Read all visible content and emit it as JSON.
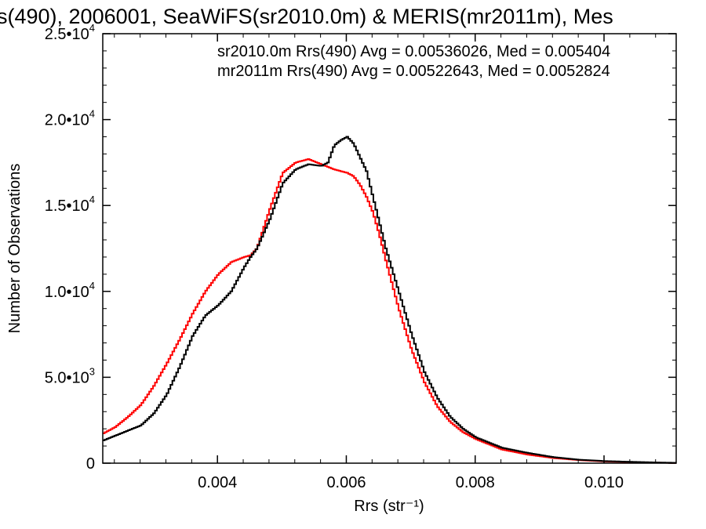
{
  "chart_data": {
    "type": "line",
    "title": "s(490), 2006001, SeaWiFS(sr2010.0m) & MERIS(mr2011m), Mes",
    "xlabel": "Rrs (str⁻¹)",
    "ylabel": "Number of Observations",
    "xlim": [
      0.00222,
      0.01112
    ],
    "ylim": [
      0,
      25000
    ],
    "x_ticks": [
      {
        "value": 0.004,
        "label": "0.004"
      },
      {
        "value": 0.006,
        "label": "0.006"
      },
      {
        "value": 0.008,
        "label": "0.008"
      },
      {
        "value": 0.01,
        "label": "0.010"
      }
    ],
    "y_ticks": [
      {
        "value": 0,
        "mant": "0",
        "exp": ""
      },
      {
        "value": 5000,
        "mant": "5.0•10",
        "exp": "3"
      },
      {
        "value": 10000,
        "mant": "1.0•10",
        "exp": "4"
      },
      {
        "value": 15000,
        "mant": "1.5•10",
        "exp": "4"
      },
      {
        "value": 20000,
        "mant": "2.0•10",
        "exp": "4"
      },
      {
        "value": 25000,
        "mant": "2.5•10",
        "exp": "4"
      }
    ],
    "grid": false,
    "legend_position": "top-right",
    "annotations": [
      {
        "text": "sr2010.0m Rrs(490) Avg = 0.00536026, Med = 0.005404",
        "color": "#000000"
      },
      {
        "text": "mr2011m Rrs(490) Avg = 0.00522643, Med = 0.0052824",
        "color": "#ff0000"
      }
    ],
    "series": [
      {
        "color": "#000000",
        "x": [
          0.0022,
          0.0024,
          0.0026,
          0.0028,
          0.003,
          0.0032,
          0.0034,
          0.0036,
          0.0038,
          0.004,
          0.0042,
          0.0044,
          0.0045,
          0.0046,
          0.0048,
          0.005,
          0.0052,
          0.0054,
          0.0056,
          0.0057,
          0.0058,
          0.0059,
          0.006,
          0.0061,
          0.0062,
          0.0063,
          0.0064,
          0.0065,
          0.0066,
          0.0068,
          0.007,
          0.0072,
          0.0074,
          0.0076,
          0.0078,
          0.008,
          0.0084,
          0.0088,
          0.0092,
          0.0096,
          0.01,
          0.0104,
          0.0108,
          0.0111
        ],
        "y": [
          1300,
          1600,
          1900,
          2200,
          2900,
          4000,
          5600,
          7400,
          8600,
          9200,
          10000,
          11400,
          12000,
          12500,
          14200,
          16300,
          17100,
          17400,
          17300,
          17500,
          18500,
          18800,
          19000,
          18600,
          17800,
          17000,
          15500,
          14000,
          12500,
          10000,
          7500,
          5300,
          3800,
          2700,
          2000,
          1500,
          900,
          600,
          350,
          200,
          120,
          80,
          40,
          20
        ]
      },
      {
        "color": "#ff0000",
        "x": [
          0.0022,
          0.0024,
          0.0026,
          0.0028,
          0.003,
          0.0032,
          0.0034,
          0.0036,
          0.0038,
          0.004,
          0.0042,
          0.0044,
          0.0045,
          0.0046,
          0.0048,
          0.005,
          0.0052,
          0.0054,
          0.0056,
          0.0058,
          0.006,
          0.0061,
          0.0062,
          0.0063,
          0.0064,
          0.0065,
          0.0066,
          0.0068,
          0.007,
          0.0072,
          0.0074,
          0.0076,
          0.0078,
          0.008,
          0.0084,
          0.0088,
          0.0092,
          0.0096,
          0.01,
          0.0104,
          0.0108,
          0.0111
        ],
        "y": [
          1700,
          2100,
          2700,
          3400,
          4500,
          5800,
          7200,
          8700,
          10000,
          11000,
          11700,
          12000,
          12100,
          12500,
          14800,
          16900,
          17500,
          17700,
          17400,
          17100,
          16900,
          16700,
          16200,
          15500,
          14600,
          13300,
          11800,
          9000,
          6600,
          4700,
          3300,
          2400,
          1800,
          1400,
          800,
          500,
          300,
          180,
          100,
          60,
          30,
          10
        ]
      }
    ]
  }
}
